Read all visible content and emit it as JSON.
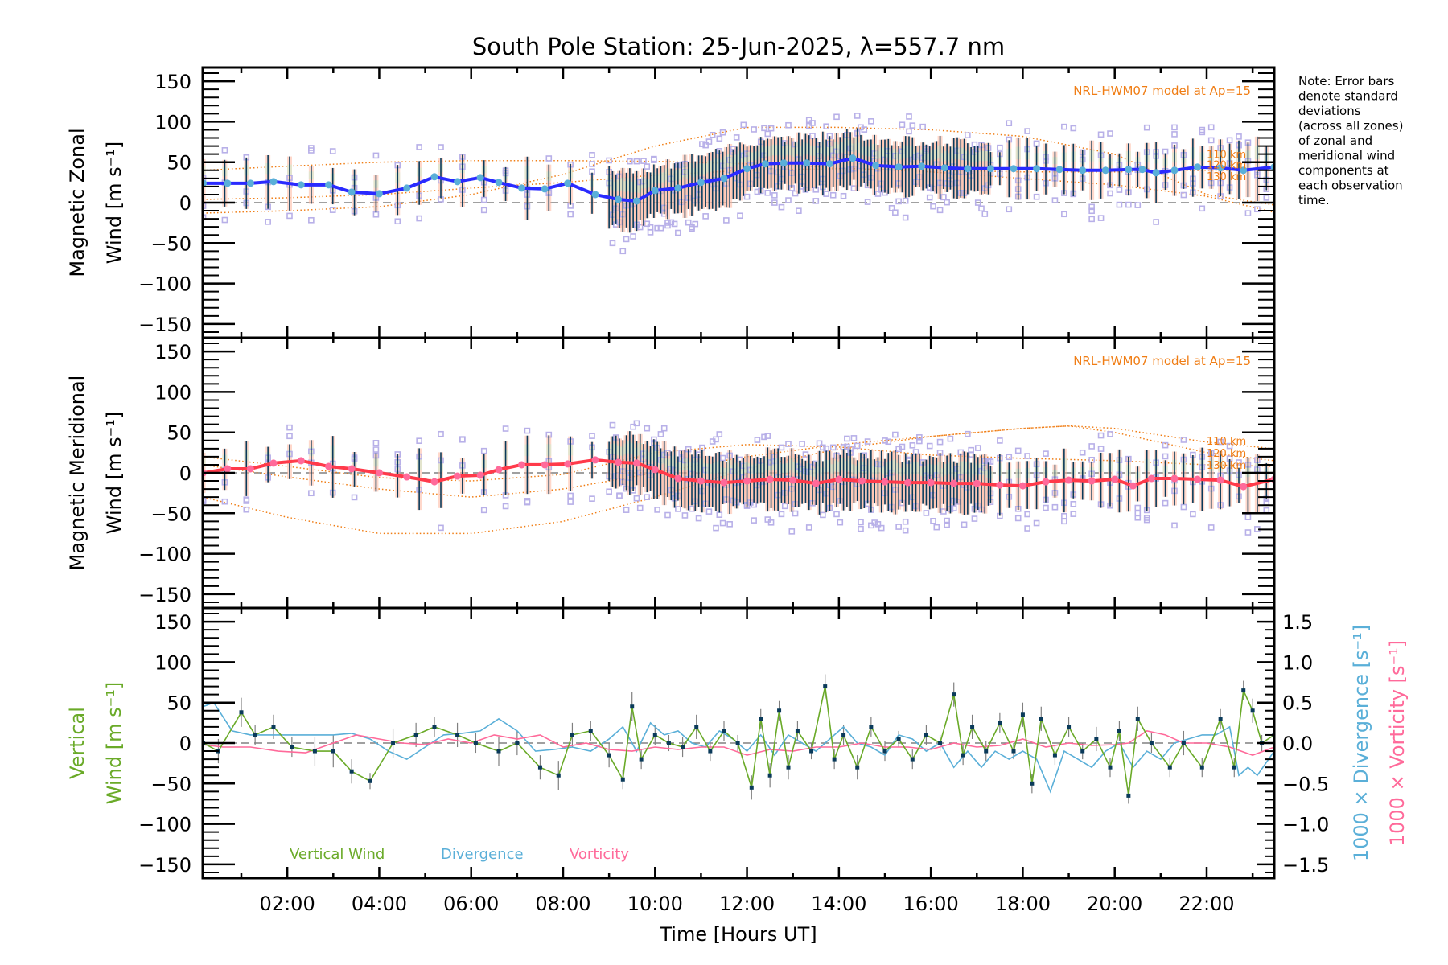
{
  "title": "South Pole Station: 25-Jun-2025, λ=557.7 nm",
  "note": [
    "Note: Error bars",
    "denote standard",
    "deviations",
    "(across all zones)",
    "of zonal and",
    "meridional wind",
    "components at",
    "each observation",
    "time."
  ],
  "xaxis": {
    "label": "Time [Hours UT]",
    "range_hours": [
      0.16,
      23.47
    ],
    "ticks": [
      {
        "h": 2,
        "label": "02:00"
      },
      {
        "h": 4,
        "label": "04:00"
      },
      {
        "h": 6,
        "label": "06:00"
      },
      {
        "h": 8,
        "label": "08:00"
      },
      {
        "h": 10,
        "label": "10:00"
      },
      {
        "h": 12,
        "label": "12:00"
      },
      {
        "h": 14,
        "label": "14:00"
      },
      {
        "h": 16,
        "label": "16:00"
      },
      {
        "h": 18,
        "label": "18:00"
      },
      {
        "h": 20,
        "label": "20:00"
      },
      {
        "h": 22,
        "label": "22:00"
      }
    ]
  },
  "colors": {
    "zonal_mean": "#2a2aff",
    "zonal_mean_dots": "#5aafd8",
    "meridional_mean": "#ff3a4a",
    "meridional_mean_dots": "#ff6a9a",
    "model": "#f07d14",
    "scatter": "#b8b0e8",
    "errorbar": "#0a3a5a",
    "vertical_wind": "#6aaa28",
    "divergence": "#5aafd8",
    "vorticity": "#ff6a9a",
    "zero_line": "#808080",
    "vw_point": "#0a3a5a",
    "vw_err": "#808080"
  },
  "chart_data": [
    {
      "type": "line",
      "name": "zonal",
      "ylabel": [
        "Magnetic Zonal",
        "Wind [m s⁻¹]"
      ],
      "ylim": [
        -167,
        167
      ],
      "yticks": [
        150,
        100,
        50,
        0,
        -50,
        -100,
        -150
      ],
      "model_label": "NRL-HWM07 model at Ap=15",
      "model_altitudes": [
        "110 km",
        "120 km",
        "130 km"
      ],
      "mean": {
        "x": [
          0.17,
          0.7,
          1.2,
          1.7,
          2.3,
          2.9,
          3.4,
          4.0,
          4.6,
          5.2,
          5.7,
          6.2,
          6.6,
          7.1,
          7.6,
          8.1,
          8.7,
          9.2,
          9.6,
          10.0,
          10.5,
          11.0,
          11.5,
          12.0,
          12.4,
          12.8,
          13.3,
          13.8,
          14.3,
          14.8,
          15.3,
          15.8,
          16.3,
          16.8,
          17.3,
          17.8,
          18.3,
          18.8,
          19.3,
          19.8,
          20.3,
          20.6,
          20.9,
          21.3,
          21.8,
          22.3,
          22.8,
          23.47
        ],
        "y": [
          24,
          24,
          24,
          26,
          22,
          22,
          13,
          11,
          18,
          32,
          26,
          31,
          25,
          18,
          17,
          24,
          10,
          4,
          2,
          15,
          18,
          25,
          30,
          42,
          48,
          49,
          49,
          48,
          55,
          46,
          44,
          45,
          43,
          42,
          42,
          42,
          42,
          41,
          40,
          40,
          41,
          41,
          37,
          40,
          44,
          43,
          40,
          44
        ]
      },
      "model": [
        {
          "label": "110 km",
          "x": [
            0.16,
            2,
            4,
            6,
            8,
            10,
            12,
            14,
            16,
            18,
            20,
            22,
            23.47
          ],
          "y": [
            -13,
            -10,
            -5,
            10,
            35,
            70,
            93,
            93,
            90,
            82,
            60,
            10,
            -3
          ]
        },
        {
          "label": "120 km",
          "x": [
            0.16,
            2,
            4,
            6,
            8,
            10,
            12,
            14,
            16,
            18,
            20,
            22,
            23.47
          ],
          "y": [
            40,
            45,
            50,
            52,
            52,
            51,
            48,
            43,
            38,
            30,
            22,
            8,
            -12
          ]
        },
        {
          "label": "130 km",
          "x": [
            0.16,
            2,
            4,
            6,
            8,
            10,
            12,
            14,
            16,
            18,
            20,
            22,
            23.47
          ],
          "y": [
            4,
            6,
            10,
            18,
            25,
            34,
            40,
            42,
            40,
            38,
            38,
            40,
            40
          ]
        }
      ]
    },
    {
      "type": "line",
      "name": "meridional",
      "ylabel": [
        "Magnetic Meridional",
        "Wind [m s⁻¹]"
      ],
      "ylim": [
        -167,
        167
      ],
      "yticks": [
        150,
        100,
        50,
        0,
        -50,
        -100,
        -150
      ],
      "model_label": "NRL-HWM07 model at Ap=15",
      "model_altitudes": [
        "110 km",
        "120 km",
        "130 km"
      ],
      "mean": {
        "x": [
          0.17,
          0.7,
          1.2,
          1.7,
          2.3,
          2.9,
          3.4,
          4.0,
          4.6,
          5.2,
          5.7,
          6.2,
          6.6,
          7.1,
          7.6,
          8.1,
          8.7,
          9.2,
          9.6,
          10.0,
          10.5,
          11.0,
          11.5,
          12.0,
          12.5,
          13.0,
          13.5,
          14.0,
          14.5,
          15.0,
          15.5,
          16.0,
          16.5,
          17.0,
          17.5,
          18.0,
          18.5,
          19.0,
          19.5,
          20.0,
          20.4,
          20.8,
          21.3,
          21.8,
          22.3,
          22.8,
          23.47
        ],
        "y": [
          0,
          5,
          5,
          12,
          15,
          8,
          5,
          0,
          -5,
          -11,
          -4,
          -3,
          4,
          10,
          10,
          11,
          16,
          13,
          12,
          4,
          -7,
          -10,
          -12,
          -10,
          -8,
          -9,
          -13,
          -8,
          -10,
          -11,
          -12,
          -12,
          -13,
          -13,
          -15,
          -16,
          -11,
          -9,
          -10,
          -8,
          -16,
          -7,
          -7,
          -8,
          -9,
          -17,
          -8
        ]
      },
      "model": [
        {
          "label": "110 km",
          "x": [
            0.16,
            2,
            4,
            6,
            8,
            10,
            12,
            14,
            16,
            18,
            19,
            20,
            22,
            23.47
          ],
          "y": [
            -30,
            -55,
            -75,
            -75,
            -60,
            -30,
            5,
            30,
            45,
            55,
            58,
            55,
            38,
            30
          ]
        },
        {
          "label": "120 km",
          "x": [
            0.16,
            2,
            4,
            6,
            8,
            10,
            12,
            14,
            16,
            18,
            19,
            20,
            22,
            23.47
          ],
          "y": [
            10,
            -5,
            -20,
            -30,
            -20,
            0,
            20,
            35,
            45,
            55,
            58,
            50,
            25,
            15
          ]
        },
        {
          "label": "130 km",
          "x": [
            0.16,
            2,
            4,
            6,
            8,
            10,
            12,
            14,
            16,
            18,
            20,
            22,
            23.47
          ],
          "y": [
            20,
            8,
            -6,
            -10,
            -2,
            25,
            35,
            32,
            22,
            18,
            15,
            10,
            8
          ]
        }
      ]
    },
    {
      "type": "line",
      "name": "vertical",
      "ylabel_left": [
        "Vertical",
        "Wind [m s⁻¹]"
      ],
      "ylabel_right": [
        "1000 × Divergence [s⁻¹]",
        "1000 × Vorticity [s⁻¹]"
      ],
      "ylim": [
        -167,
        167
      ],
      "yticks": [
        150,
        100,
        50,
        0,
        -50,
        -100,
        -150
      ],
      "y2lim": [
        -1.67,
        1.67
      ],
      "y2ticks": [
        "1.5",
        "1.0",
        "0.5",
        "0.0",
        "-0.5",
        "-1.0",
        "-1.5"
      ],
      "legend": [
        "Vertical Wind",
        "Divergence",
        "Vorticity"
      ],
      "vertical_wind": {
        "x": [
          0.17,
          0.5,
          1.0,
          1.3,
          1.7,
          2.1,
          2.6,
          3.0,
          3.4,
          3.8,
          4.3,
          4.8,
          5.2,
          5.7,
          6.1,
          6.6,
          7.0,
          7.5,
          7.9,
          8.2,
          8.6,
          9.0,
          9.3,
          9.5,
          9.7,
          10.0,
          10.3,
          10.6,
          10.9,
          11.2,
          11.5,
          11.8,
          12.1,
          12.3,
          12.5,
          12.7,
          12.9,
          13.1,
          13.4,
          13.7,
          13.9,
          14.1,
          14.4,
          14.7,
          15.0,
          15.3,
          15.6,
          15.9,
          16.2,
          16.5,
          16.7,
          16.9,
          17.2,
          17.5,
          17.8,
          18.0,
          18.2,
          18.4,
          18.7,
          19.0,
          19.3,
          19.6,
          19.9,
          20.1,
          20.3,
          20.5,
          20.8,
          21.2,
          21.5,
          21.9,
          22.3,
          22.6,
          22.8,
          23.0,
          23.2,
          23.47
        ],
        "y": [
          0,
          -10,
          38,
          10,
          20,
          -5,
          -10,
          -10,
          -35,
          -47,
          0,
          10,
          20,
          10,
          0,
          -10,
          0,
          -30,
          -40,
          10,
          15,
          -15,
          -45,
          45,
          -20,
          10,
          0,
          -5,
          20,
          -10,
          15,
          0,
          -55,
          30,
          -40,
          40,
          -30,
          15,
          -10,
          70,
          -20,
          10,
          -30,
          20,
          -10,
          5,
          -20,
          10,
          0,
          60,
          -15,
          20,
          -10,
          25,
          -10,
          35,
          -50,
          30,
          -15,
          20,
          -10,
          5,
          -30,
          15,
          -65,
          30,
          0,
          -30,
          0,
          -30,
          30,
          -30,
          65,
          40,
          0,
          10
        ]
      },
      "vertical_wind_err": [
        15,
        15,
        18,
        12,
        15,
        12,
        18,
        20,
        15,
        10,
        18,
        15,
        12,
        15,
        12,
        18,
        15,
        15,
        18,
        15,
        12,
        15,
        12,
        18,
        12,
        12,
        10,
        12,
        15,
        12,
        12,
        10,
        15,
        12,
        15,
        12,
        15,
        12,
        10,
        15,
        12,
        12,
        15,
        12,
        12,
        10,
        12,
        12,
        10,
        15,
        12,
        15,
        12,
        12,
        10,
        15,
        12,
        15,
        12,
        12,
        10,
        15,
        12,
        12,
        10,
        15,
        12,
        12,
        15,
        12,
        12,
        12,
        12,
        15,
        10,
        12
      ],
      "divergence": {
        "x": [
          0.17,
          0.4,
          0.8,
          1.2,
          1.6,
          2.0,
          2.5,
          3.0,
          3.4,
          3.8,
          4.2,
          4.6,
          5.0,
          5.4,
          5.8,
          6.2,
          6.6,
          7.0,
          7.4,
          7.8,
          8.2,
          8.6,
          9.0,
          9.3,
          9.6,
          9.9,
          10.2,
          10.5,
          10.8,
          11.1,
          11.4,
          11.7,
          12.0,
          12.3,
          12.6,
          12.9,
          13.2,
          13.5,
          13.8,
          14.1,
          14.4,
          14.7,
          15.0,
          15.3,
          15.6,
          15.9,
          16.2,
          16.5,
          16.8,
          17.1,
          17.4,
          17.7,
          18.0,
          18.3,
          18.6,
          18.9,
          19.2,
          19.5,
          19.8,
          20.1,
          20.4,
          20.7,
          21.0,
          21.3,
          21.6,
          21.9,
          22.2,
          22.5,
          22.7,
          22.9,
          23.1,
          23.47
        ],
        "y": [
          0.45,
          0.5,
          0.15,
          0.1,
          0.1,
          0.1,
          0.1,
          0.1,
          0.12,
          0.05,
          -0.1,
          -0.2,
          -0.05,
          0.1,
          0.12,
          0.15,
          0.3,
          0.15,
          -0.1,
          -0.08,
          -0.05,
          -0.1,
          0.05,
          0.2,
          -0.1,
          0.25,
          0.1,
          0.15,
          0.0,
          -0.05,
          0.15,
          0.05,
          -0.1,
          0.1,
          -0.15,
          0.1,
          0.0,
          -0.1,
          0.05,
          0.2,
          0.0,
          -0.05,
          -0.15,
          0.1,
          0.05,
          -0.1,
          0.0,
          -0.3,
          -0.1,
          -0.3,
          -0.1,
          -0.2,
          -0.1,
          -0.2,
          -0.6,
          -0.1,
          -0.2,
          -0.3,
          -0.1,
          0.0,
          -0.3,
          -0.1,
          -0.2,
          0.0,
          0.05,
          0.1,
          0.1,
          0.2,
          -0.4,
          -0.3,
          -0.4,
          -0.1
        ]
      },
      "vorticity": {
        "x": [
          0.17,
          0.6,
          1.2,
          1.8,
          2.4,
          3.0,
          3.5,
          4.0,
          4.5,
          5.0,
          5.5,
          6.0,
          6.5,
          7.0,
          7.5,
          8.0,
          8.5,
          9.0,
          9.5,
          10.0,
          10.5,
          11.0,
          11.5,
          12.0,
          12.5,
          13.0,
          13.5,
          14.0,
          14.5,
          15.0,
          15.5,
          16.0,
          16.5,
          17.0,
          17.5,
          18.0,
          18.5,
          19.0,
          19.5,
          20.0,
          20.3,
          20.7,
          21.1,
          21.5,
          22.0,
          22.5,
          23.0,
          23.47
        ],
        "y": [
          -0.02,
          -0.05,
          -0.05,
          -0.1,
          -0.12,
          0.0,
          0.1,
          0.05,
          0.0,
          -0.02,
          0.05,
          0.0,
          0.1,
          0.05,
          0.1,
          -0.05,
          0.0,
          -0.08,
          -0.1,
          -0.05,
          -0.08,
          -0.05,
          -0.05,
          -0.15,
          -0.08,
          -0.1,
          -0.05,
          -0.05,
          0.0,
          -0.05,
          -0.05,
          -0.08,
          0.0,
          -0.05,
          -0.03,
          0.05,
          -0.05,
          0.0,
          -0.03,
          -0.02,
          0.0,
          0.15,
          0.1,
          0.0,
          0.0,
          -0.05,
          -0.15,
          -0.05
        ]
      }
    }
  ]
}
